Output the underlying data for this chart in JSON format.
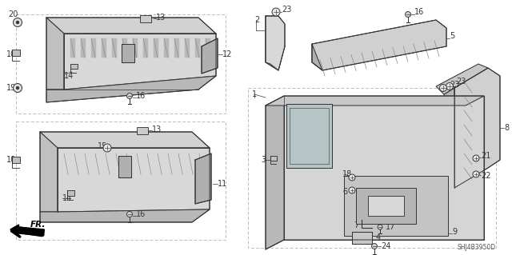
{
  "bg_color": "#ffffff",
  "fig_width": 6.4,
  "fig_height": 3.19,
  "diagram_code": "SHJ4B3950D",
  "line_color": "#404040",
  "fill_color": "#e8e8e8",
  "fill_light": "#f2f2f2",
  "dash_color": "#888888"
}
